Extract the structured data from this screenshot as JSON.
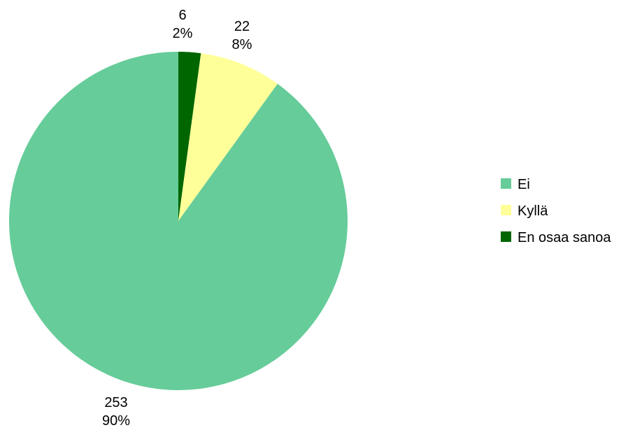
{
  "chart_data": {
    "type": "pie",
    "title": "",
    "legend_position": "right",
    "slices": [
      {
        "label": "Ei",
        "value": 253,
        "percent": "90%",
        "color": "#66cc99"
      },
      {
        "label": "Kyllä",
        "value": 22,
        "percent": "8%",
        "color": "#ffff99"
      },
      {
        "label": "En osaa sanoa",
        "value": 6,
        "percent": "2%",
        "color": "#006600"
      }
    ]
  }
}
